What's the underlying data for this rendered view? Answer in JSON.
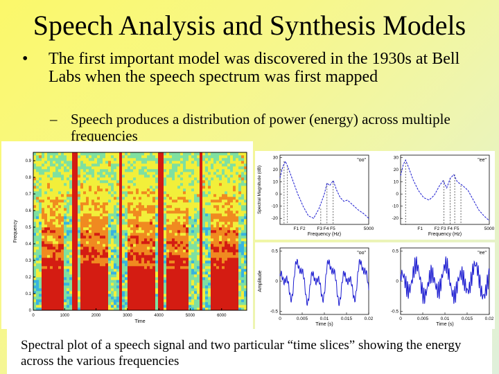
{
  "slide": {
    "title": "Speech Analysis and Synthesis Models",
    "bullet_marker": "•",
    "bullet_text": "The first important model was discovered in the 1930s at Bell Labs when the speech spectrum was first mapped",
    "sub_marker": "–",
    "sub_text": "Speech produces a distribution of power (energy) across multiple frequencies",
    "caption": "Spectral plot of a speech signal and two particular “time slices” showing the energy across the various frequencies"
  },
  "chart_data": [
    {
      "type": "heatmap",
      "title": "",
      "xlabel": "Time",
      "ylabel": "Frequency",
      "x_ticks": [
        "0",
        "1000",
        "2000",
        "3000",
        "4000",
        "5000",
        "6000"
      ],
      "y_ticks": [
        "0",
        "0.1",
        "0.2",
        "0.3",
        "0.4",
        "0.5",
        "0.6",
        "0.7",
        "0.8",
        "0.9"
      ],
      "xlim": [
        0,
        6800
      ],
      "ylim": [
        0,
        0.95
      ],
      "colormap": [
        "#1f6cd8",
        "#37b3e0",
        "#7fe0a0",
        "#f2ef3a",
        "#f08a20",
        "#d41c12"
      ]
    },
    {
      "type": "line",
      "label": "\"oo\"",
      "xlabel": "Frequency (Hz)",
      "ylabel": "Spectral Magnitude (dB)",
      "y_ticks": [
        "30",
        "20",
        "10",
        "0",
        "-10",
        "-20"
      ],
      "x_ticks": [
        "F1 F2",
        "F3 F4 F5",
        "5000"
      ],
      "xlim": [
        0,
        5000
      ],
      "ylim": [
        -25,
        32
      ],
      "color": "#1b1bd0",
      "x": [
        0,
        150,
        300,
        420,
        600,
        800,
        1000,
        1300,
        1600,
        1900,
        2200,
        2500,
        2650,
        2800,
        3000,
        3200,
        3400,
        3600,
        3800,
        4100,
        4400,
        4700,
        5000
      ],
      "y": [
        13,
        22,
        27,
        23,
        16,
        8,
        0,
        -10,
        -18,
        -20,
        -12,
        0,
        9,
        7,
        11,
        3,
        -3,
        -6,
        -5,
        -9,
        -13,
        -16,
        -20
      ]
    },
    {
      "type": "line",
      "label": "\"ee\"",
      "xlabel": "Frequency (Hz)",
      "ylabel": "",
      "y_ticks": [
        "30",
        "20",
        "10",
        "0",
        "-10",
        "-20"
      ],
      "x_ticks": [
        "F1",
        "F2 F3 F4 F5",
        "5000"
      ],
      "xlim": [
        0,
        5000
      ],
      "ylim": [
        -25,
        32
      ],
      "color": "#1b1bd0",
      "x": [
        0,
        150,
        280,
        450,
        700,
        1000,
        1300,
        1600,
        1900,
        2200,
        2400,
        2600,
        2800,
        3000,
        3200,
        3500,
        3800,
        4100,
        4400,
        4700,
        5000
      ],
      "y": [
        15,
        24,
        28,
        22,
        12,
        3,
        -3,
        -5,
        -1,
        7,
        11,
        5,
        13,
        16,
        10,
        7,
        3,
        -5,
        -13,
        -18,
        -22
      ]
    },
    {
      "type": "line",
      "label": "\"oo\"",
      "xlabel": "Time (s)",
      "ylabel": "Amplitude",
      "y_ticks": [
        "0.5",
        "0",
        "-0.5"
      ],
      "x_ticks": [
        "0",
        "0.005",
        "0.01",
        "0.015",
        "0.02"
      ],
      "xlim": [
        0,
        0.02
      ],
      "ylim": [
        -0.55,
        0.55
      ],
      "color": "#1b1bd0"
    },
    {
      "type": "line",
      "label": "\"ee\"",
      "xlabel": "Time (s)",
      "ylabel": "",
      "y_ticks": [
        "0.5",
        "0",
        "-0.5"
      ],
      "x_ticks": [
        "0",
        "0.005",
        "0.01",
        "0.015",
        "0.02"
      ],
      "xlim": [
        0,
        0.02
      ],
      "ylim": [
        -0.55,
        0.55
      ],
      "color": "#1b1bd0"
    }
  ]
}
